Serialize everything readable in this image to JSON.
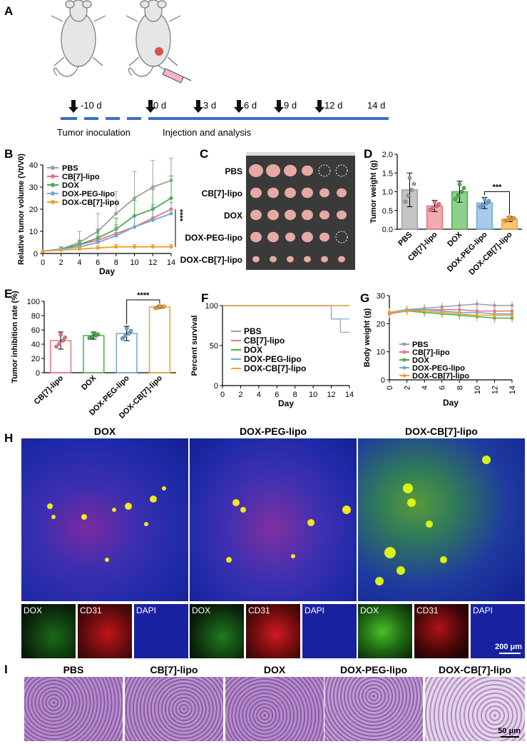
{
  "panels": {
    "A": "A",
    "B": "B",
    "C": "C",
    "D": "D",
    "E": "E",
    "F": "F",
    "G": "G",
    "H": "H",
    "I": "I"
  },
  "timeline": {
    "markers": [
      "-10 d",
      "0 d",
      "3 d",
      "6 d",
      "9 d",
      "12 d",
      "14 d"
    ],
    "phase1": "Tumor inoculation",
    "phase2": "Injection and analysis"
  },
  "groups": [
    "PBS",
    "CB[7]-lipo",
    "DOX",
    "DOX-PEG-lipo",
    "DOX-CB[7]-lipo"
  ],
  "colors": {
    "PBS": "#9e9e9e",
    "CB[7]-lipo": "#e8737d",
    "DOX": "#45b045",
    "DOX-PEG-lipo": "#6ea7d8",
    "DOX-CB[7]-lipo": "#f0a02a"
  },
  "photo_c": {
    "rows": [
      "PBS",
      "CB[7]-lipo",
      "DOX",
      "DOX-PEG-lipo",
      "DOX-CB[7]-lipo"
    ]
  },
  "chart_data": [
    {
      "id": "B",
      "type": "line",
      "ylabel": "Relative tumor volume (Vt/V0)",
      "xlabel": "Day",
      "x": [
        0,
        2,
        4,
        6,
        8,
        10,
        12,
        14
      ],
      "xlim": [
        0,
        14
      ],
      "ylim": [
        0,
        40
      ],
      "yticks": [
        0,
        10,
        20,
        30,
        40
      ],
      "xticks": [
        0,
        2,
        4,
        6,
        8,
        10,
        12,
        14
      ],
      "series": [
        {
          "name": "PBS",
          "values": [
            1,
            2,
            5,
            10,
            18,
            25,
            30,
            33
          ],
          "err": [
            0,
            1,
            5,
            8,
            10,
            12,
            12,
            10
          ]
        },
        {
          "name": "CB[7]-lipo",
          "values": [
            1,
            2,
            4,
            6,
            9,
            12,
            16,
            20
          ],
          "err": [
            0,
            1,
            2,
            3,
            4,
            5,
            6,
            5
          ]
        },
        {
          "name": "DOX",
          "values": [
            1,
            2,
            4,
            7,
            11,
            17,
            20,
            25
          ],
          "err": [
            0,
            1,
            2,
            4,
            5,
            7,
            9,
            10
          ]
        },
        {
          "name": "DOX-PEG-lipo",
          "values": [
            1,
            2,
            3,
            5,
            8,
            12,
            15,
            18
          ],
          "err": [
            0,
            1,
            2,
            3,
            4,
            5,
            6,
            5
          ]
        },
        {
          "name": "DOX-CB[7]-lipo",
          "values": [
            1,
            1.5,
            2,
            2.5,
            3,
            3,
            3,
            3
          ],
          "err": [
            0,
            0.5,
            1,
            1,
            1,
            1,
            1,
            1
          ]
        }
      ],
      "annotation": "****"
    },
    {
      "id": "D",
      "type": "bar",
      "ylabel": "Tumor weight (g)",
      "categories": [
        "PBS",
        "CB[7]-lipo",
        "DOX",
        "DOX-PEG-lipo",
        "DOX-CB[7]-lipo"
      ],
      "values": [
        1.05,
        0.62,
        1.0,
        0.7,
        0.27
      ],
      "err": [
        0.45,
        0.15,
        0.28,
        0.15,
        0.07
      ],
      "ylim": [
        0,
        2.0
      ],
      "yticks": [
        "0.0",
        "0.5",
        "1.0",
        "1.5",
        "2.0"
      ],
      "annotation": "***"
    },
    {
      "id": "E",
      "type": "bar",
      "ylabel": "Tumor inhibition rate (%)",
      "categories": [
        "CB[7]-lipo",
        "DOX",
        "DOX-PEG-lipo",
        "DOX-CB[7]-lipo"
      ],
      "values": [
        45,
        52,
        55,
        92
      ],
      "err": [
        12,
        5,
        10,
        2
      ],
      "ylim": [
        0,
        100
      ],
      "yticks": [
        "0",
        "20",
        "40",
        "60",
        "80",
        "100"
      ],
      "annotation": "****"
    },
    {
      "id": "F",
      "type": "line",
      "ylabel": "Percent survival",
      "xlabel": "Day",
      "xlim": [
        0,
        14
      ],
      "ylim": [
        0,
        100
      ],
      "yticks": [
        0,
        50,
        100
      ],
      "xticks": [
        0,
        2,
        4,
        6,
        8,
        10,
        12,
        14
      ],
      "series": [
        {
          "name": "PBS",
          "points": [
            [
              0,
              100
            ],
            [
              12,
              100
            ],
            [
              12,
              83.3
            ],
            [
              13,
              83.3
            ],
            [
              13,
              66.7
            ],
            [
              14,
              66.7
            ]
          ]
        },
        {
          "name": "CB[7]-lipo",
          "points": [
            [
              0,
              100
            ],
            [
              14,
              100
            ]
          ]
        },
        {
          "name": "DOX",
          "points": [
            [
              0,
              100
            ],
            [
              14,
              100
            ]
          ]
        },
        {
          "name": "DOX-PEG-lipo",
          "points": [
            [
              0,
              100
            ],
            [
              12,
              100
            ],
            [
              12,
              83.3
            ],
            [
              14,
              83.3
            ]
          ]
        },
        {
          "name": "DOX-CB[7]-lipo",
          "points": [
            [
              0,
              100
            ],
            [
              14,
              100
            ]
          ]
        }
      ]
    },
    {
      "id": "G",
      "type": "line",
      "ylabel": "Body weight (g)",
      "xlabel": "Day",
      "x": [
        0,
        2,
        4,
        6,
        8,
        10,
        12,
        14
      ],
      "xlim": [
        0,
        14
      ],
      "ylim": [
        0,
        30
      ],
      "yticks": [
        0,
        10,
        20,
        30
      ],
      "xticks": [
        0,
        2,
        4,
        6,
        8,
        10,
        12,
        14
      ],
      "series": [
        {
          "name": "PBS",
          "values": [
            24,
            25,
            25.5,
            26,
            26.5,
            27,
            26.5,
            26.5
          ]
        },
        {
          "name": "CB[7]-lipo",
          "values": [
            23.5,
            24.5,
            25,
            25,
            25,
            24.5,
            24.5,
            24.5
          ]
        },
        {
          "name": "DOX",
          "values": [
            24,
            24.5,
            24,
            23.5,
            23,
            22.5,
            22,
            22
          ]
        },
        {
          "name": "DOX-PEG-lipo",
          "values": [
            24,
            25,
            25,
            24.5,
            24,
            24,
            23.5,
            23.5
          ]
        },
        {
          "name": "DOX-CB[7]-lipo",
          "values": [
            24,
            24.5,
            24.5,
            24,
            23.5,
            23,
            23,
            23
          ]
        }
      ]
    }
  ],
  "panel_h": {
    "titles": [
      "DOX",
      "DOX-PEG-lipo",
      "DOX-CB[7]-lipo"
    ],
    "channels": [
      "DOX",
      "CD31",
      "DAPI"
    ],
    "scalebar": "200 μm"
  },
  "panel_i": {
    "titles": [
      "PBS",
      "CB[7]-lipo",
      "DOX",
      "DOX-PEG-lipo",
      "DOX-CB[7]-lipo"
    ],
    "scalebar": "50 μm"
  }
}
